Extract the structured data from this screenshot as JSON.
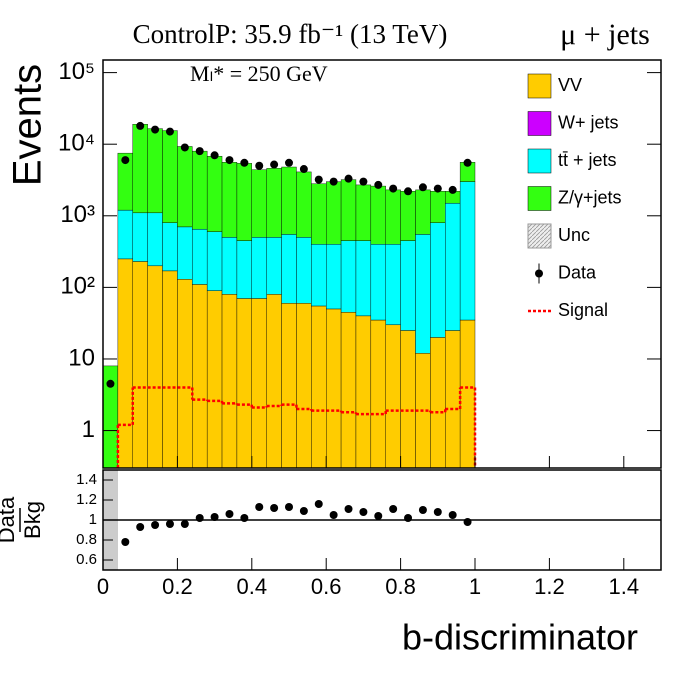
{
  "chart_data": {
    "type": "stacked-histogram",
    "title": "ControlP: 35.9 fb⁻¹ (13 TeV)",
    "channel": "μ + jets",
    "annotation": "Mₗ* = 250 GeV",
    "ylabel": "Events",
    "xlabel": "b-discriminator",
    "log_y": true,
    "bins": [
      0,
      0.04,
      0.08,
      0.12,
      0.16,
      0.2,
      0.24,
      0.28,
      0.32,
      0.36,
      0.4,
      0.44,
      0.48,
      0.52,
      0.56,
      0.6,
      0.64,
      0.68,
      0.72,
      0.76,
      0.8,
      0.84,
      0.88,
      0.92,
      0.96,
      1
    ],
    "xlim": [
      0,
      1.5
    ],
    "xticks": [
      0,
      0.2,
      0.4,
      0.6,
      0.8,
      1,
      1.2,
      1.4
    ],
    "ylim": [
      0.3,
      150000
    ],
    "yticks": [
      1,
      10,
      {
        "value": 100,
        "label": "10²"
      },
      {
        "value": 1000,
        "label": "10³"
      },
      {
        "value": 10000,
        "label": "10⁴"
      },
      {
        "value": 100000,
        "label": "10⁵"
      }
    ],
    "series": [
      {
        "name": "VV",
        "color": "#ffcc00",
        "values": [
          0,
          250,
          230,
          200,
          170,
          130,
          110,
          90,
          80,
          70,
          70,
          80,
          60,
          60,
          55,
          50,
          45,
          40,
          35,
          30,
          25,
          12,
          20,
          25,
          35
        ]
      },
      {
        "name": "W+ jets",
        "color": "#cc00ff",
        "values": [
          0,
          0,
          0,
          0,
          0,
          0,
          0,
          0,
          0,
          0,
          0,
          0,
          0,
          0,
          0,
          0,
          0,
          0,
          0,
          0,
          0,
          0,
          0,
          0,
          0
        ]
      },
      {
        "name": "tt̄ + jets",
        "color": "#00ffff",
        "values": [
          0,
          950,
          870,
          900,
          630,
          570,
          540,
          510,
          420,
          380,
          430,
          420,
          490,
          440,
          345,
          350,
          405,
          410,
          365,
          370,
          425,
          538,
          780,
          1475,
          2965
        ]
      },
      {
        "name": "Z/γ+jets",
        "color": "#33ff11",
        "values": [
          8,
          6300,
          17900,
          15400,
          14700,
          8600,
          7350,
          6200,
          5100,
          4950,
          3900,
          4100,
          4250,
          3600,
          2400,
          2600,
          2750,
          2250,
          2200,
          1900,
          1750,
          1750,
          1400,
          700,
          2600
        ]
      }
    ],
    "uncertainty": {
      "name": "Unc"
    },
    "data": {
      "name": "Data",
      "color": "#000000",
      "values": [
        4.5,
        6000,
        18000,
        16000,
        15000,
        9000,
        8000,
        7000,
        6000,
        5500,
        5000,
        5200,
        5500,
        4500,
        3200,
        3000,
        3300,
        3000,
        2700,
        2400,
        2200,
        2500,
        2400,
        2300,
        5500
      ]
    },
    "signal": {
      "name": "Signal",
      "color": "#ff0000",
      "values": [
        null,
        1.2,
        4,
        4,
        4,
        4,
        2.7,
        2.6,
        2.4,
        2.3,
        2.1,
        2.2,
        2.3,
        2.0,
        1.9,
        1.9,
        1.8,
        1.7,
        1.7,
        1.9,
        1.9,
        1.9,
        1.8,
        2.0,
        4
      ]
    },
    "ratio": {
      "ylabel_top": "Data",
      "ylabel_bottom": "Bkg",
      "ylim": [
        0.5,
        1.5
      ],
      "yticks": [
        0.6,
        0.8,
        1,
        1.2,
        1.4
      ],
      "values": [
        null,
        0.78,
        0.93,
        0.95,
        0.96,
        0.96,
        1.02,
        1.03,
        1.06,
        1.02,
        1.13,
        1.12,
        1.13,
        1.09,
        1.16,
        1.05,
        1.11,
        1.08,
        1.04,
        1.11,
        1.02,
        1.1,
        1.08,
        1.05,
        0.98
      ]
    }
  }
}
